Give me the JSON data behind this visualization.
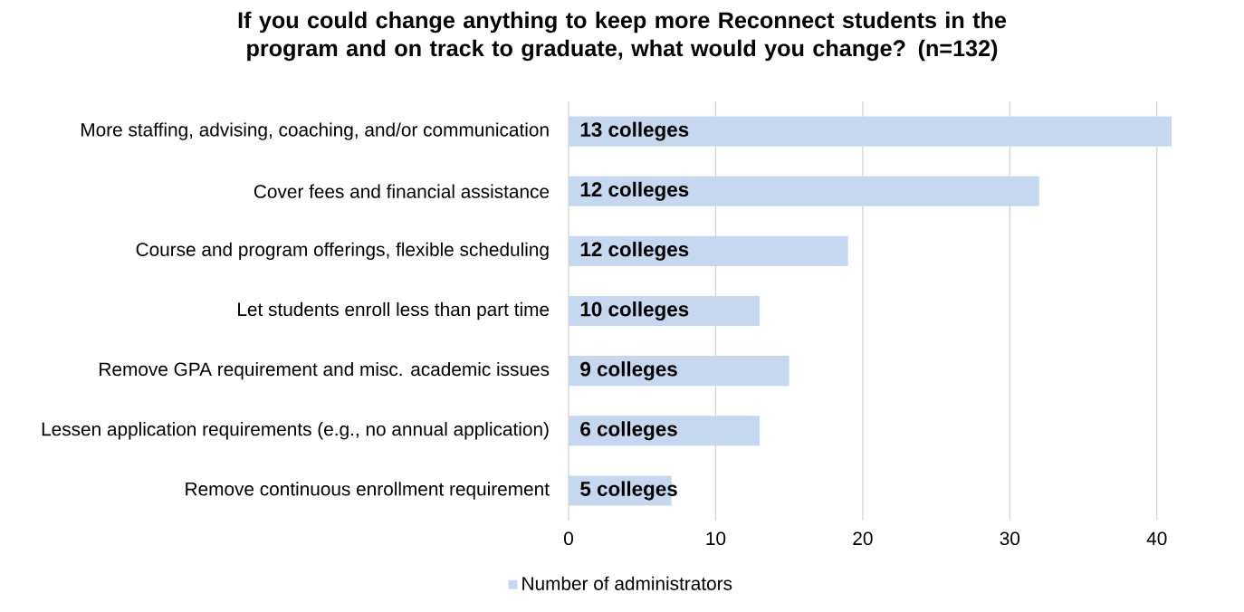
{
  "chart_data": {
    "type": "bar",
    "orientation": "horizontal",
    "title": "If you could change anything to keep more Reconnect students in the program and on track to graduate, what would you change? (n=132)",
    "categories": [
      "More staffing, advising, coaching, and/or communication",
      "Cover fees and financial assistance",
      "Course and program offerings, flexible scheduling",
      "Let students enroll less than part time",
      "Remove GPA requirement and misc. academic issues",
      "Lessen application requirements (e.g., no annual application)",
      "Remove continuous enrollment requirement"
    ],
    "series": [
      {
        "name": "Number of administrators",
        "color": "#c5d8f0",
        "values": [
          41,
          32,
          19,
          13,
          15,
          13,
          7
        ]
      }
    ],
    "annotations": [
      "13 colleges",
      "12 colleges",
      "12 colleges",
      "10 colleges",
      "9 colleges",
      "6 colleges",
      "5 colleges"
    ],
    "xlim": [
      0,
      41
    ],
    "xticks": [
      0,
      10,
      20,
      30,
      40
    ],
    "grid": "x",
    "legend": "bottom"
  }
}
